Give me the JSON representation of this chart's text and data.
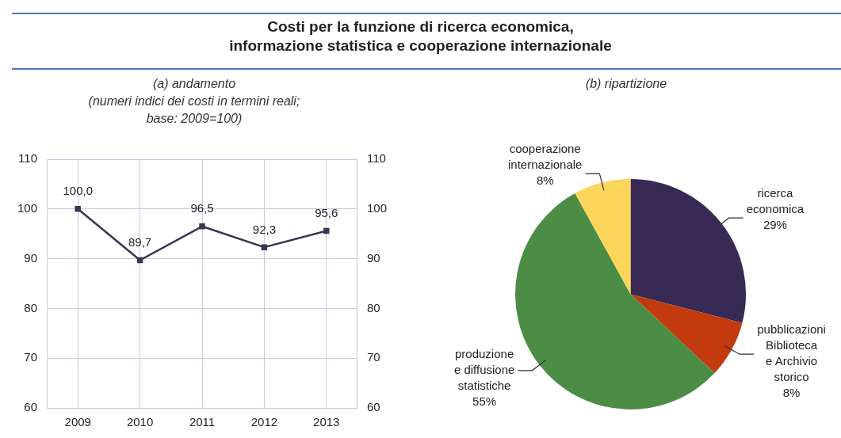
{
  "chart_data": [
    {
      "type": "line",
      "title": "Costi per la funzione di ricerca economica,\ninformazione statistica e cooperazione internazionale",
      "subtitle": "(a) andamento\n(numeri indici dei costi in termini reali;\nbase: 2009=100)",
      "categories": [
        "2009",
        "2010",
        "2011",
        "2012",
        "2013"
      ],
      "series": [
        {
          "color": "#3a3550",
          "values": [
            100.0,
            89.7,
            96.5,
            92.3,
            95.6
          ],
          "value_labels": [
            "100,0",
            "89,7",
            "96,5",
            "92,3",
            "95,6"
          ]
        }
      ],
      "ylim": [
        60,
        110
      ],
      "yticks": [
        60,
        70,
        80,
        90,
        100,
        110
      ],
      "y2lim": [
        60,
        110
      ],
      "y2ticks": [
        60,
        70,
        80,
        90,
        100,
        110
      ],
      "grid": true,
      "marker": "square",
      "line_style": "solid"
    },
    {
      "type": "pie",
      "subtitle": "(b) ripartizione",
      "categories": [
        "ricerca\neconomica",
        "pubblicazioni\nBiblioteca\ne Archivio\nstorico",
        "produzione\ne diffusione\nstatistiche",
        "cooperazione\ninternazionale"
      ],
      "values": [
        29,
        8,
        55,
        8
      ],
      "colors": [
        "#382a55",
        "#c23a0e",
        "#4b8d45",
        "#fbd65a"
      ],
      "value_labels": [
        "29%",
        "8%",
        "55%",
        "8%"
      ]
    }
  ]
}
